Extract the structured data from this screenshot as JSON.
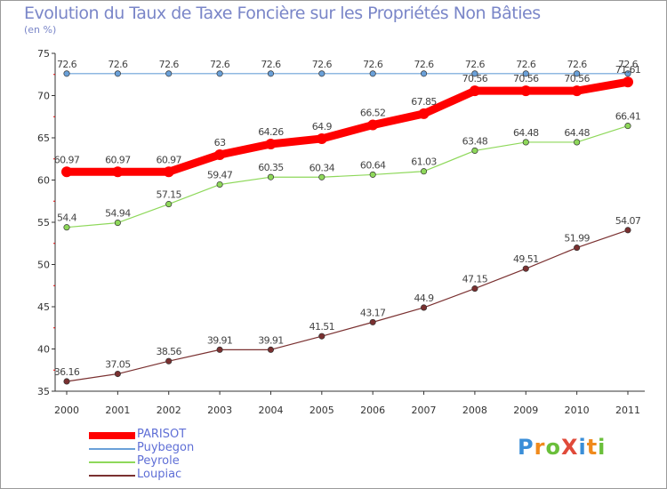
{
  "title": "Evolution du Taux de Taxe Foncière sur les Propriétés Non Bâties",
  "subtitle": "(en %)",
  "logo": "ProXiti",
  "chart_data": {
    "type": "line",
    "title": "Evolution du Taux de Taxe Foncière sur les Propriétés Non Bâties",
    "ylabel": "(en %)",
    "xlabel": "",
    "categories": [
      "2000",
      "2001",
      "2002",
      "2003",
      "2004",
      "2005",
      "2006",
      "2007",
      "2008",
      "2009",
      "2010",
      "2011"
    ],
    "ylim": [
      35,
      75
    ],
    "yticks": [
      35,
      40,
      45,
      50,
      55,
      60,
      65,
      70,
      75
    ],
    "grid": false,
    "legend": "bottom-left",
    "series": [
      {
        "name": "PARISOT",
        "color": "#ff0000",
        "values": [
          60.97,
          60.97,
          60.97,
          63,
          64.26,
          64.9,
          66.52,
          67.85,
          70.56,
          70.56,
          70.56,
          71.61
        ],
        "labels": [
          "60.97",
          "60.97",
          "60.97",
          "63",
          "64.26",
          "64.9",
          "66.52",
          "67.85",
          "70.56",
          "70.56",
          "70.56",
          "71.61"
        ]
      },
      {
        "name": "Puybegon",
        "color": "#6aa0d8",
        "values": [
          72.6,
          72.6,
          72.6,
          72.6,
          72.6,
          72.6,
          72.6,
          72.6,
          72.6,
          72.6,
          72.6,
          72.6
        ],
        "labels": [
          "72.6",
          "72.6",
          "72.6",
          "72.6",
          "72.6",
          "72.6",
          "72.6",
          "72.6",
          "72.6",
          "72.6",
          "72.6",
          "72.6"
        ]
      },
      {
        "name": "Peyrole",
        "color": "#8ed85a",
        "values": [
          54.4,
          54.94,
          57.15,
          59.47,
          60.35,
          60.34,
          60.64,
          61.03,
          63.48,
          64.48,
          64.48,
          66.41
        ],
        "labels": [
          "54.4",
          "54.94",
          "57.15",
          "59.47",
          "60.35",
          "60.34",
          "60.64",
          "61.03",
          "63.48",
          "64.48",
          "64.48",
          "66.41"
        ]
      },
      {
        "name": "Loupiac",
        "color": "#7a3030",
        "values": [
          36.16,
          37.05,
          38.56,
          39.91,
          39.91,
          41.51,
          43.17,
          44.9,
          47.15,
          49.51,
          51.99,
          54.07
        ],
        "labels": [
          "36.16",
          "37.05",
          "38.56",
          "39.91",
          "39.91",
          "41.51",
          "43.17",
          "44.9",
          "47.15",
          "49.51",
          "51.99",
          "54.07"
        ]
      }
    ]
  }
}
